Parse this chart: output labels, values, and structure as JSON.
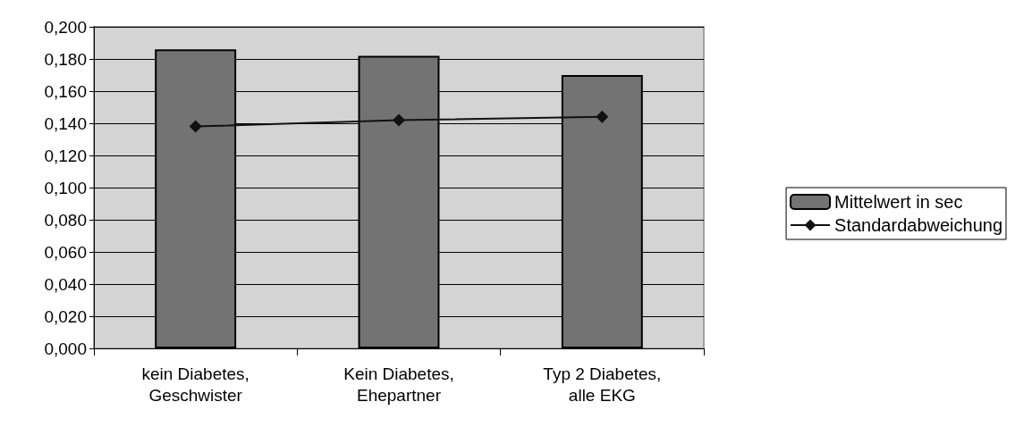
{
  "chart_data": {
    "type": "bar",
    "categories": [
      "kein Diabetes,\nGeschwister",
      "Kein Diabetes,\nEhepartner",
      "Typ 2 Diabetes,\nalle EKG"
    ],
    "series": [
      {
        "name": "Mittelwert in sec",
        "color": "#737373",
        "values": [
          0.186,
          0.182,
          0.17
        ]
      },
      {
        "name": "Standardabweichung",
        "type": "line",
        "color": "#111111",
        "values": [
          0.138,
          0.142,
          0.144
        ],
        "marker": "diamond"
      }
    ],
    "ylim": [
      0,
      0.2
    ],
    "yticks": [
      {
        "value": 0,
        "label": "0,000"
      },
      {
        "value": 0.02,
        "label": "0,020"
      },
      {
        "value": 0.04,
        "label": "0,040"
      },
      {
        "value": 0.06,
        "label": "0,060"
      },
      {
        "value": 0.08,
        "label": "0,080"
      },
      {
        "value": 0.1,
        "label": "0,100"
      },
      {
        "value": 0.12,
        "label": "0,120"
      },
      {
        "value": 0.14,
        "label": "0,140"
      },
      {
        "value": 0.16,
        "label": "0,160"
      },
      {
        "value": 0.18,
        "label": "0,180"
      },
      {
        "value": 0.2,
        "label": "0,200"
      }
    ],
    "grid": "y",
    "legend": "right"
  }
}
